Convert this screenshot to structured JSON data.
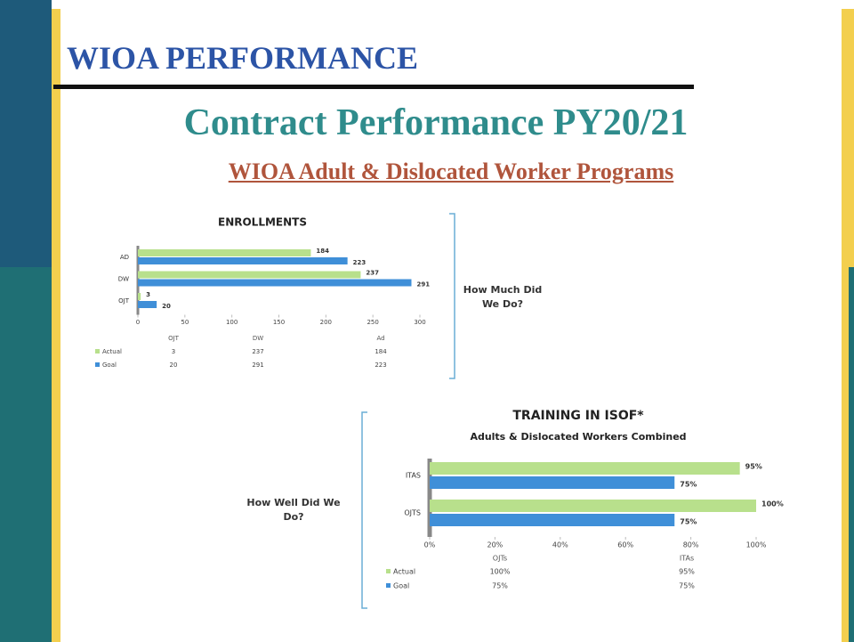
{
  "slide": {
    "title": "WIOA PERFORMANCE",
    "subtitle": "Contract Performance PY20/21",
    "heading": "WIOA Adult & Dislocated Worker Programs",
    "side_labels": [
      "How Much Did We Do?",
      "How Well Did We Do?"
    ]
  },
  "chart_data": [
    {
      "type": "hbar",
      "title": "ENROLLMENTS",
      "categories": [
        "AD",
        "DW",
        "OJT"
      ],
      "series": [
        {
          "name": "Actual",
          "color": "#b8e08c",
          "values": [
            184,
            237,
            3
          ]
        },
        {
          "name": "Goal",
          "color": "#3f8fd8",
          "values": [
            223,
            291,
            20
          ]
        }
      ],
      "table_columns": [
        "OJT",
        "DW",
        "Ad"
      ],
      "xlim": [
        0,
        300
      ],
      "xticks": [
        0,
        50,
        100,
        150,
        200,
        250,
        300
      ]
    },
    {
      "type": "hbar",
      "title": "TRAINING IN ISOF*",
      "subtitle": "Adults & Dislocated Workers Combined",
      "categories": [
        "ITAS",
        "OJTS"
      ],
      "series": [
        {
          "name": "Actual",
          "color": "#b8e08c",
          "values": [
            95,
            100
          ],
          "value_labels": [
            "95%",
            "100%"
          ]
        },
        {
          "name": "Goal",
          "color": "#3f8fd8",
          "values": [
            75,
            75
          ],
          "value_labels": [
            "75%",
            "75%"
          ]
        }
      ],
      "table_columns": [
        "OJTs",
        "ITAs"
      ],
      "xlim": [
        0,
        100
      ],
      "xticks": [
        {
          "value": 0,
          "label": "0%"
        },
        {
          "value": 20,
          "label": "20%"
        },
        {
          "value": 40,
          "label": "40%"
        },
        {
          "value": 60,
          "label": "60%"
        },
        {
          "value": 80,
          "label": "80%"
        },
        {
          "value": 100,
          "label": "100%"
        }
      ]
    }
  ]
}
